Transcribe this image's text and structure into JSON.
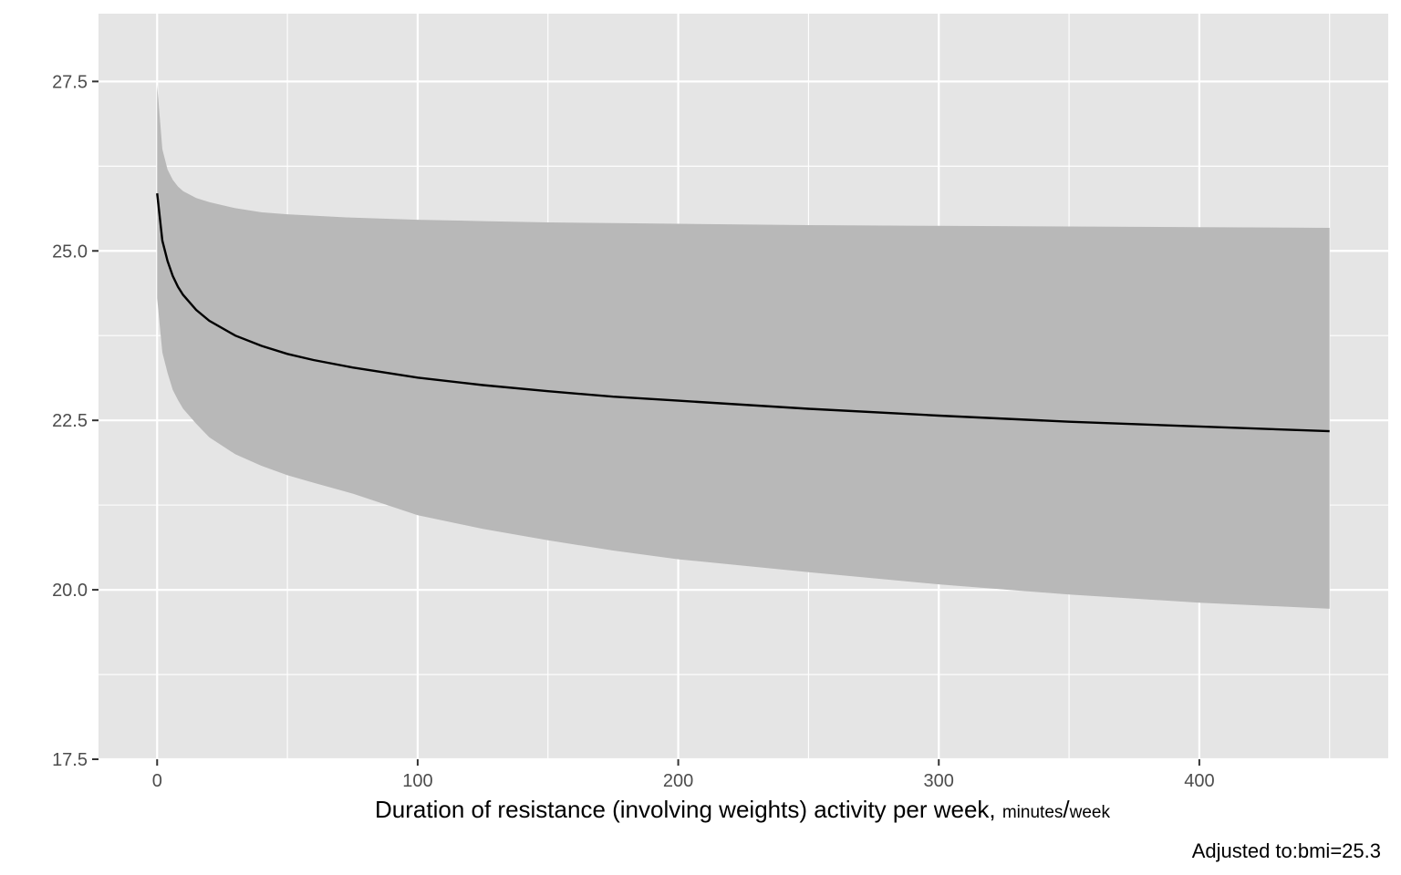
{
  "chart_data": {
    "type": "line",
    "xlabel_main": "Duration of resistance (involving weights) activity per week, ",
    "xlabel_unit_num": "minutes",
    "xlabel_unit_sep": "/",
    "xlabel_unit_den": "week",
    "ylabel": "",
    "caption": "Adjusted to:bmi=25.3",
    "xlim": [
      -22.5,
      472.5
    ],
    "ylim": [
      17.5,
      28.5
    ],
    "x_ticks": [
      0,
      100,
      200,
      300,
      400
    ],
    "x_tick_labels": [
      "0",
      "100",
      "200",
      "300",
      "400"
    ],
    "x_minor_ticks": [
      50,
      150,
      250,
      350,
      450
    ],
    "y_ticks": [
      17.5,
      20.0,
      22.5,
      25.0,
      27.5
    ],
    "y_tick_labels": [
      "17.5",
      "20.0",
      "22.5",
      "25.0",
      "27.5"
    ],
    "y_minor_ticks": [
      18.75,
      21.25,
      23.75,
      26.25
    ],
    "grid": true,
    "colors": {
      "panel": "#e5e5e5",
      "grid": "#ffffff",
      "ribbon": "#b8b8b8",
      "line": "#000000",
      "tick": "#333333"
    },
    "series": [
      {
        "x": [
          0,
          2,
          4,
          6,
          8,
          10,
          15,
          20,
          30,
          40,
          50,
          60,
          75,
          100,
          125,
          150,
          175,
          200,
          250,
          300,
          350,
          400,
          450
        ],
        "y": [
          25.85,
          25.15,
          24.85,
          24.63,
          24.47,
          24.35,
          24.13,
          23.97,
          23.75,
          23.6,
          23.48,
          23.39,
          23.28,
          23.13,
          23.02,
          22.93,
          22.85,
          22.79,
          22.67,
          22.57,
          22.48,
          22.41,
          22.34
        ],
        "lower": [
          24.3,
          23.5,
          23.2,
          22.95,
          22.8,
          22.67,
          22.45,
          22.25,
          22.0,
          21.83,
          21.69,
          21.58,
          21.42,
          21.1,
          20.9,
          20.73,
          20.58,
          20.45,
          20.26,
          20.08,
          19.93,
          19.81,
          19.72
        ],
        "upper": [
          27.45,
          26.5,
          26.2,
          26.05,
          25.95,
          25.88,
          25.78,
          25.72,
          25.63,
          25.57,
          25.54,
          25.52,
          25.49,
          25.46,
          25.44,
          25.42,
          25.41,
          25.4,
          25.38,
          25.37,
          25.36,
          25.35,
          25.34
        ]
      }
    ]
  }
}
